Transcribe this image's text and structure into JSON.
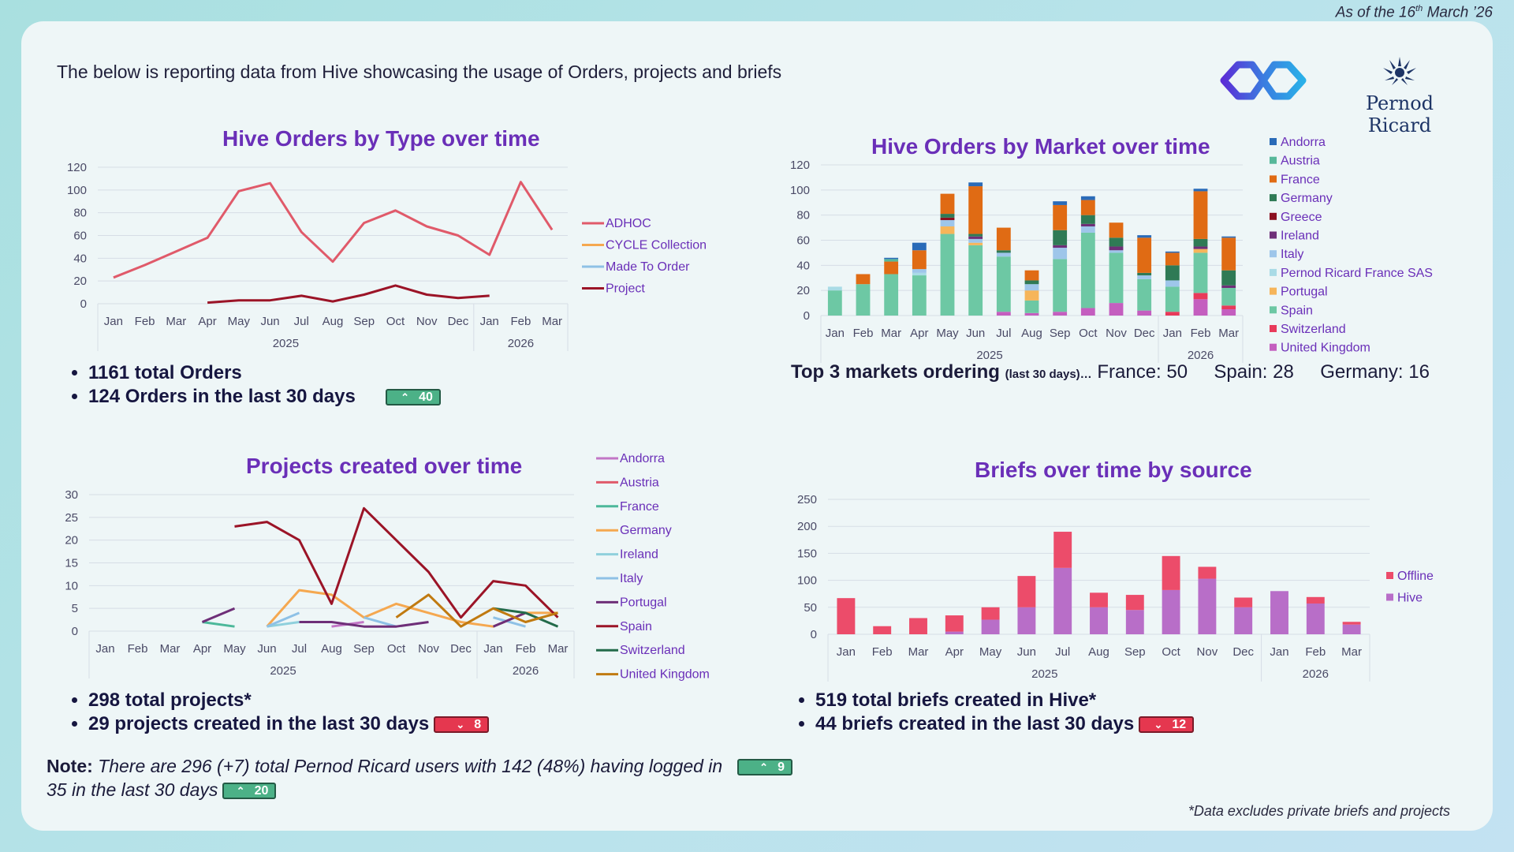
{
  "header": {
    "as_of_pre": "As of the 16",
    "as_of_sup": "th",
    "as_of_post": " March ’26",
    "intro": "The below is reporting data from Hive showcasing the usage of Orders, projects and briefs",
    "logo_text": "Pernod Ricard"
  },
  "colors": {
    "title": "#6a2fb8",
    "badge_up": "#4cb187",
    "badge_down": "#e5374f"
  },
  "orders_summary": {
    "total": "1161 total Orders",
    "last30": "124 Orders in the last 30 days",
    "badge": "40",
    "badge_dir": "up"
  },
  "markets_summary": {
    "label": "Top 3 markets ordering",
    "small": "(last 30 days)…",
    "m1": "France: 50",
    "m2": "Spain: 28",
    "m3": "Germany: 16"
  },
  "projects_summary": {
    "total": "298 total projects*",
    "last30": "29 projects created in the last 30 days",
    "badge": "8",
    "badge_dir": "down"
  },
  "briefs_summary": {
    "total": "519 total briefs created in Hive*",
    "last30": "44 briefs created in the last 30 days",
    "badge": "12",
    "badge_dir": "down"
  },
  "note": {
    "label": "Note:",
    "text1": "There are 296 (+7) total Pernod Ricard users with 142 (48%) having logged in",
    "badge1": "9",
    "text2": "35 in the last 30 days",
    "badge2": "20"
  },
  "footnote": "*Data excludes private briefs and projects",
  "chart_data": [
    {
      "id": "orders_type",
      "type": "line",
      "title": "Hive Orders by Type over time",
      "categories": [
        "Jan",
        "Feb",
        "Mar",
        "Apr",
        "May",
        "Jun",
        "Jul",
        "Aug",
        "Sep",
        "Oct",
        "Nov",
        "Dec",
        "Jan",
        "Feb",
        "Mar"
      ],
      "year_groups": [
        {
          "label": "2025",
          "span": 12
        },
        {
          "label": "2026",
          "span": 3
        }
      ],
      "ylim": [
        0,
        120
      ],
      "yticks": [
        0,
        20,
        40,
        60,
        80,
        100,
        120
      ],
      "series": [
        {
          "name": "ADHOC",
          "color": "#e05a6a",
          "values": [
            23,
            34,
            46,
            58,
            99,
            106,
            63,
            37,
            71,
            82,
            68,
            60,
            43,
            107,
            65
          ]
        },
        {
          "name": "CYCLE Collection",
          "color": "#f5a850",
          "values": [
            null,
            null,
            null,
            null,
            null,
            null,
            null,
            null,
            null,
            null,
            null,
            null,
            null,
            null,
            null
          ]
        },
        {
          "name": "Made To Order",
          "color": "#8ec1e6",
          "values": [
            null,
            null,
            null,
            null,
            null,
            null,
            null,
            null,
            null,
            null,
            null,
            null,
            null,
            null,
            null
          ]
        },
        {
          "name": "Project",
          "color": "#9b1427",
          "values": [
            null,
            null,
            null,
            1,
            3,
            3,
            7,
            2,
            8,
            16,
            8,
            5,
            7,
            null,
            null
          ]
        }
      ],
      "legend": "right"
    },
    {
      "id": "orders_market",
      "type": "bar",
      "stacked": true,
      "title": "Hive Orders by Market over time",
      "categories": [
        "Jan",
        "Feb",
        "Mar",
        "Apr",
        "May",
        "Jun",
        "Jul",
        "Aug",
        "Sep",
        "Oct",
        "Nov",
        "Dec",
        "Jan",
        "Feb",
        "Mar"
      ],
      "year_groups": [
        {
          "label": "2025",
          "span": 12
        },
        {
          "label": "2026",
          "span": 3
        }
      ],
      "ylim": [
        0,
        120
      ],
      "yticks": [
        0,
        20,
        40,
        60,
        80,
        100,
        120
      ],
      "series": [
        {
          "name": "United Kingdom",
          "color": "#c45ebf",
          "values": [
            0,
            0,
            0,
            0,
            0,
            0,
            3,
            2,
            3,
            6,
            10,
            4,
            0,
            13,
            5
          ]
        },
        {
          "name": "Switzerland",
          "color": "#e83a5a",
          "values": [
            0,
            0,
            0,
            0,
            0,
            0,
            0,
            0,
            0,
            0,
            0,
            0,
            3,
            5,
            3
          ]
        },
        {
          "name": "Spain",
          "color": "#6dc8a4",
          "values": [
            20,
            25,
            33,
            32,
            65,
            56,
            44,
            10,
            42,
            60,
            40,
            25,
            20,
            32,
            14
          ]
        },
        {
          "name": "Portugal",
          "color": "#f6b55a",
          "values": [
            0,
            0,
            0,
            0,
            6,
            2,
            0,
            8,
            0,
            0,
            0,
            0,
            0,
            3,
            0
          ]
        },
        {
          "name": "Pernod Ricard France SAS",
          "color": "#a9dbe6",
          "values": [
            3,
            0,
            0,
            2,
            0,
            0,
            0,
            0,
            0,
            0,
            0,
            0,
            0,
            0,
            0
          ]
        },
        {
          "name": "Italy",
          "color": "#9ec6ea",
          "values": [
            0,
            0,
            0,
            3,
            5,
            3,
            3,
            5,
            9,
            5,
            2,
            3,
            5,
            0,
            0
          ]
        },
        {
          "name": "Ireland",
          "color": "#6e2f78",
          "values": [
            0,
            0,
            0,
            0,
            0,
            2,
            0,
            0,
            2,
            2,
            3,
            0,
            0,
            2,
            2
          ]
        },
        {
          "name": "Greece",
          "color": "#8b1020",
          "values": [
            0,
            0,
            0,
            0,
            2,
            0,
            0,
            0,
            0,
            0,
            0,
            0,
            0,
            0,
            0
          ]
        },
        {
          "name": "Germany",
          "color": "#2f7a55",
          "values": [
            0,
            0,
            0,
            0,
            3,
            2,
            2,
            3,
            12,
            7,
            7,
            2,
            12,
            6,
            12
          ]
        },
        {
          "name": "France",
          "color": "#e06b14",
          "values": [
            0,
            8,
            10,
            15,
            16,
            38,
            18,
            8,
            20,
            12,
            12,
            28,
            10,
            38,
            26
          ]
        },
        {
          "name": "Austria",
          "color": "#57b89a",
          "values": [
            0,
            0,
            2,
            0,
            0,
            0,
            0,
            0,
            0,
            0,
            0,
            0,
            0,
            0,
            0
          ]
        },
        {
          "name": "Andorra",
          "color": "#2a6bb8",
          "values": [
            0,
            0,
            1,
            6,
            0,
            3,
            0,
            0,
            3,
            3,
            0,
            2,
            1,
            2,
            1
          ]
        }
      ],
      "legend_order": [
        "Andorra",
        "Austria",
        "France",
        "Germany",
        "Greece",
        "Ireland",
        "Italy",
        "Pernod Ricard France SAS",
        "Portugal",
        "Spain",
        "Switzerland",
        "United Kingdom"
      ],
      "legend": "right"
    },
    {
      "id": "projects",
      "type": "line",
      "title": "Projects created over time",
      "categories": [
        "Jan",
        "Feb",
        "Mar",
        "Apr",
        "May",
        "Jun",
        "Jul",
        "Aug",
        "Sep",
        "Oct",
        "Nov",
        "Dec",
        "Jan",
        "Feb",
        "Mar"
      ],
      "year_groups": [
        {
          "label": "2025",
          "span": 12
        },
        {
          "label": "2026",
          "span": 3
        }
      ],
      "ylim": [
        0,
        30
      ],
      "yticks": [
        0,
        5,
        10,
        15,
        20,
        25,
        30
      ],
      "series": [
        {
          "name": "Andorra",
          "color": "#c276c6",
          "values": [
            null,
            null,
            null,
            null,
            null,
            null,
            null,
            1,
            2,
            null,
            null,
            null,
            null,
            null,
            null
          ]
        },
        {
          "name": "Austria",
          "color": "#e05a6a",
          "values": [
            null,
            null,
            null,
            null,
            null,
            null,
            null,
            null,
            null,
            null,
            null,
            null,
            null,
            null,
            null
          ]
        },
        {
          "name": "France",
          "color": "#4cb89a",
          "values": [
            null,
            null,
            null,
            2,
            1,
            null,
            null,
            null,
            null,
            null,
            null,
            null,
            null,
            null,
            null
          ]
        },
        {
          "name": "Germany",
          "color": "#f5a850",
          "values": [
            null,
            null,
            null,
            null,
            null,
            1,
            9,
            8,
            3,
            6,
            4,
            2,
            1,
            4,
            4
          ]
        },
        {
          "name": "Ireland",
          "color": "#8fd0dc",
          "values": [
            null,
            null,
            null,
            null,
            null,
            1,
            2,
            null,
            null,
            null,
            null,
            null,
            null,
            null,
            null
          ]
        },
        {
          "name": "Italy",
          "color": "#8ec1e6",
          "values": [
            null,
            null,
            null,
            null,
            null,
            1,
            4,
            null,
            3,
            1,
            null,
            null,
            3,
            1,
            null
          ]
        },
        {
          "name": "Portugal",
          "color": "#6e2f78",
          "values": [
            null,
            null,
            null,
            2,
            5,
            null,
            2,
            2,
            1,
            1,
            2,
            null,
            1,
            4,
            null
          ]
        },
        {
          "name": "Spain",
          "color": "#9b1427",
          "values": [
            null,
            null,
            null,
            null,
            23,
            24,
            20,
            6,
            27,
            20,
            13,
            3,
            11,
            10,
            3
          ]
        },
        {
          "name": "Switzerland",
          "color": "#236b4a",
          "values": [
            null,
            null,
            null,
            null,
            null,
            null,
            null,
            null,
            null,
            null,
            null,
            null,
            5,
            4,
            1
          ]
        },
        {
          "name": "United Kingdom",
          "color": "#c07a10",
          "values": [
            null,
            null,
            null,
            null,
            null,
            null,
            null,
            null,
            null,
            3,
            8,
            1,
            5,
            2,
            4
          ]
        }
      ],
      "legend": "right"
    },
    {
      "id": "briefs",
      "type": "bar",
      "stacked": true,
      "title": "Briefs over time by source",
      "categories": [
        "Jan",
        "Feb",
        "Mar",
        "Apr",
        "May",
        "Jun",
        "Jul",
        "Aug",
        "Sep",
        "Oct",
        "Nov",
        "Dec",
        "Jan",
        "Feb",
        "Mar"
      ],
      "year_groups": [
        {
          "label": "2025",
          "span": 12
        },
        {
          "label": "2026",
          "span": 3
        }
      ],
      "ylim": [
        0,
        250
      ],
      "yticks": [
        0,
        50,
        100,
        150,
        200,
        250
      ],
      "series": [
        {
          "name": "Hive",
          "color": "#b86ec8",
          "values": [
            0,
            0,
            0,
            5,
            27,
            50,
            123,
            50,
            45,
            82,
            103,
            50,
            80,
            57,
            18
          ]
        },
        {
          "name": "Offline",
          "color": "#ec4c6a",
          "values": [
            67,
            15,
            30,
            30,
            23,
            58,
            67,
            27,
            28,
            63,
            22,
            18,
            0,
            12,
            5
          ]
        }
      ],
      "legend_order": [
        "Offline",
        "Hive"
      ],
      "legend": "right"
    }
  ]
}
